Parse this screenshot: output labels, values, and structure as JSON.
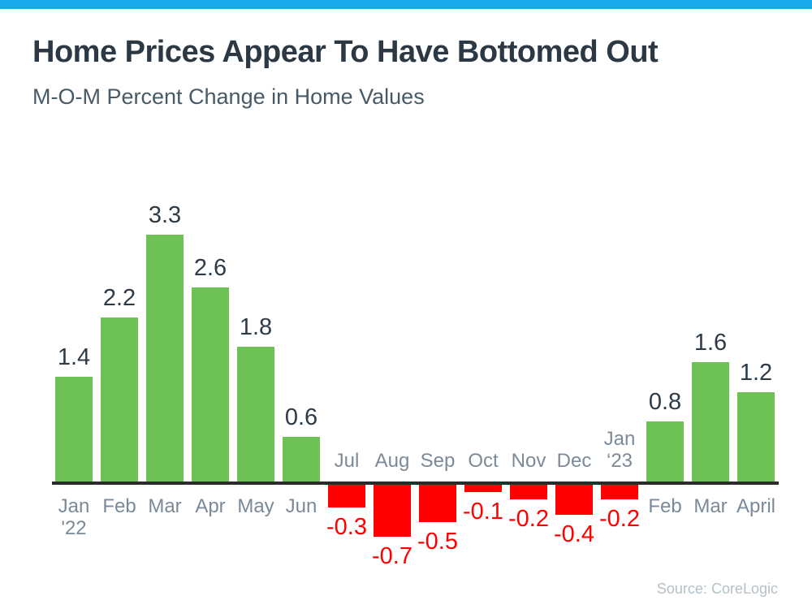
{
  "page": {
    "title": "Home Prices Appear To Have Bottomed Out",
    "subtitle": "M-O-M Percent Change in Home Values",
    "source": "Source: CoreLogic"
  },
  "colors": {
    "accent_bar": "#18a9ea",
    "positive_bar": "#6ec155",
    "negative_bar": "#ff0000",
    "axis": "#2b2b2b",
    "title_text": "#2c3944",
    "subtitle_text": "#475a66",
    "month_label": "#7b8a98",
    "positive_value_label": "#2e3b47",
    "source_text": "#b5c1c9"
  },
  "chart_data": {
    "type": "bar",
    "title": "Home Prices Appear To Have Bottomed Out",
    "subtitle": "M-O-M Percent Change in Home Values",
    "categories": [
      "Jan '22",
      "Feb",
      "Mar",
      "Apr",
      "May",
      "Jun",
      "Jul",
      "Aug",
      "Sep",
      "Oct",
      "Nov",
      "Dec",
      "Jan ‘23",
      "Feb",
      "Mar",
      "April"
    ],
    "category_lines": [
      [
        "Jan",
        "'22"
      ],
      [
        "Feb"
      ],
      [
        "Mar"
      ],
      [
        "Apr"
      ],
      [
        "May"
      ],
      [
        "Jun"
      ],
      [
        "Jul"
      ],
      [
        "Aug"
      ],
      [
        "Sep"
      ],
      [
        "Oct"
      ],
      [
        "Nov"
      ],
      [
        "Dec"
      ],
      [
        "Jan",
        "‘23"
      ],
      [
        "Feb"
      ],
      [
        "Mar"
      ],
      [
        "April"
      ]
    ],
    "values": [
      1.4,
      2.2,
      3.3,
      2.6,
      1.8,
      0.6,
      -0.3,
      -0.7,
      -0.5,
      -0.1,
      -0.2,
      -0.4,
      -0.2,
      0.8,
      1.6,
      1.2
    ],
    "value_labels": [
      "1.4",
      "2.2",
      "3.3",
      "2.6",
      "1.8",
      "0.6",
      "-0.3",
      "-0.7",
      "-0.5",
      "-0.1",
      "-0.2",
      "-0.4",
      "-0.2",
      "0.8",
      "1.6",
      "1.2"
    ],
    "xlabel": "",
    "ylabel": "",
    "ylim": [
      -0.9,
      3.6
    ],
    "grid": false,
    "legend": "none",
    "positive_color": "#6ec155",
    "negative_color": "#ff0000",
    "source": "Source: CoreLogic"
  }
}
